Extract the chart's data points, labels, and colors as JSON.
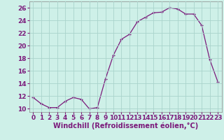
{
  "x": [
    0,
    1,
    2,
    3,
    4,
    5,
    6,
    7,
    8,
    9,
    10,
    11,
    12,
    13,
    14,
    15,
    16,
    17,
    18,
    19,
    20,
    21,
    22,
    23
  ],
  "y": [
    11.8,
    10.8,
    10.2,
    10.2,
    11.2,
    11.8,
    11.5,
    10.0,
    10.2,
    14.7,
    18.5,
    21.0,
    21.8,
    23.8,
    24.5,
    25.2,
    25.3,
    26.0,
    25.8,
    25.0,
    25.0,
    23.2,
    17.8,
    14.3
  ],
  "line_color": "#7b1a7b",
  "marker": "+",
  "markersize": 3.5,
  "linewidth": 0.9,
  "bg_color": "#cef0e8",
  "grid_color": "#aad4cc",
  "xlabel": "Windchill (Refroidissement éolien,°C)",
  "xlabel_fontsize": 7,
  "tick_fontsize": 6.5,
  "ylim": [
    9.5,
    27
  ],
  "xlim": [
    -0.5,
    23.5
  ],
  "yticks": [
    10,
    12,
    14,
    16,
    18,
    20,
    22,
    24,
    26
  ],
  "xticks": [
    0,
    1,
    2,
    3,
    4,
    5,
    6,
    7,
    8,
    9,
    10,
    11,
    12,
    13,
    14,
    15,
    16,
    17,
    18,
    19,
    20,
    21,
    22,
    23
  ],
  "tick_color": "#7b1a7b",
  "spine_color": "#888888"
}
